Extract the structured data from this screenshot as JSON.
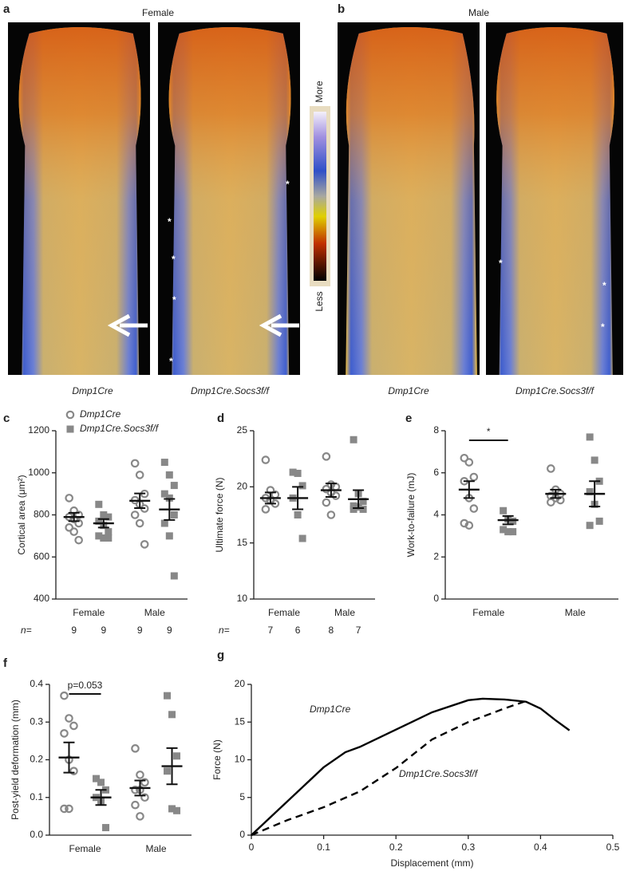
{
  "figure": {
    "panel_a": {
      "letter": "a",
      "title": "Female",
      "captions": [
        "Dmp1Cre",
        "Dmp1Cre.Socs3f/f"
      ],
      "asterisks": [
        "*",
        "*",
        "*",
        "*",
        "*"
      ]
    },
    "colorbar": {
      "top": "More",
      "bottom": "Less"
    },
    "panel_b": {
      "letter": "b",
      "title": "Male",
      "captions": [
        "Dmp1Cre",
        "Dmp1Cre.Socs3f/f"
      ],
      "asterisks": [
        "*",
        "*",
        "*"
      ]
    }
  },
  "chart_data": [
    {
      "type": "dot",
      "letter": "c",
      "ylabel": "Cortical area (μm²)",
      "categories": [
        "Female",
        "Male"
      ],
      "legend": true,
      "series": [
        {
          "name": "Dmp1Cre",
          "color": "#888888",
          "marker": "circle",
          "values": [
            [
              880,
              820,
              800,
              790,
              780,
              760,
              740,
              720,
              680
            ],
            [
              1045,
              990,
              900,
              870,
              850,
              830,
              800,
              760,
              660
            ]
          ],
          "mean": [
            790,
            867
          ],
          "sem": [
            20,
            35
          ]
        },
        {
          "name": "Dmp1Cre.Socs3f/f",
          "color": "#888888",
          "marker": "square",
          "values": [
            [
              850,
              800,
              790,
              770,
              750,
              720,
              700,
              690,
              690
            ],
            [
              1050,
              990,
              940,
              900,
              880,
              800,
              760,
              700,
              510
            ]
          ],
          "mean": [
            760,
            826
          ],
          "sem": [
            20,
            50
          ]
        }
      ],
      "ylim": [
        400,
        1200
      ],
      "yticks": [
        400,
        600,
        800,
        1000,
        1200
      ],
      "n_label": "n=",
      "n": [
        [
          9,
          9
        ],
        [
          9,
          9
        ]
      ]
    },
    {
      "type": "dot",
      "letter": "d",
      "ylabel": "Ultimate force (N)",
      "categories": [
        "Female",
        "Male"
      ],
      "series": [
        {
          "color": "#888888",
          "marker": "circle",
          "values": [
            [
              22.4,
              19.7,
              19.3,
              19.0,
              18.8,
              18.5,
              18.0
            ],
            [
              22.7,
              20.2,
              20.0,
              19.8,
              19.5,
              19.2,
              18.6,
              17.5
            ]
          ],
          "mean": [
            19.0,
            19.7
          ],
          "sem": [
            0.5,
            0.6
          ]
        },
        {
          "color": "#888888",
          "marker": "square",
          "values": [
            [
              21.3,
              21.2,
              20.1,
              19.0,
              17.5,
              15.4
            ],
            [
              24.2,
              19.4,
              18.7,
              18.3,
              18.2,
              18.0,
              18.0
            ]
          ],
          "mean": [
            19.0,
            18.9
          ],
          "sem": [
            1.0,
            0.8
          ]
        }
      ],
      "ylim": [
        10,
        25
      ],
      "yticks": [
        10,
        15,
        20,
        25
      ],
      "n_label": "n=",
      "n": [
        [
          7,
          6
        ],
        [
          8,
          7
        ]
      ]
    },
    {
      "type": "dot",
      "letter": "e",
      "ylabel": "Work-to-failure (mJ)",
      "categories": [
        "Female",
        "Male"
      ],
      "series": [
        {
          "color": "#888888",
          "marker": "circle",
          "values": [
            [
              6.7,
              6.5,
              5.8,
              5.6,
              4.8,
              4.3,
              3.6,
              3.5
            ],
            [
              6.2,
              5.2,
              5.0,
              4.9,
              4.8,
              4.7,
              4.6
            ]
          ],
          "mean": [
            5.2,
            5.0
          ],
          "sem": [
            0.4,
            0.2
          ]
        },
        {
          "color": "#888888",
          "marker": "square",
          "values": [
            [
              4.2,
              3.8,
              3.7,
              3.3,
              3.2,
              3.2
            ],
            [
              7.7,
              6.6,
              5.6,
              5.1,
              4.5,
              3.7,
              3.5
            ]
          ],
          "mean": [
            3.75,
            5.0
          ],
          "sem": [
            0.2,
            0.6
          ]
        }
      ],
      "ylim": [
        0,
        8
      ],
      "yticks": [
        0,
        2,
        4,
        6,
        8
      ],
      "significance": {
        "label": "*",
        "category": 0
      }
    },
    {
      "type": "dot",
      "letter": "f",
      "ylabel": "Post-yield deformation (mm)",
      "categories": [
        "Female",
        "Male"
      ],
      "series": [
        {
          "color": "#888888",
          "marker": "circle",
          "values": [
            [
              0.37,
              0.31,
              0.29,
              0.27,
              0.2,
              0.17,
              0.07,
              0.07
            ],
            [
              0.23,
              0.16,
              0.14,
              0.12,
              0.12,
              0.1,
              0.08,
              0.05
            ]
          ],
          "mean": [
            0.206,
            0.125
          ],
          "sem": [
            0.04,
            0.02
          ]
        },
        {
          "color": "#888888",
          "marker": "square",
          "values": [
            [
              0.15,
              0.14,
              0.12,
              0.1,
              0.09,
              0.02
            ],
            [
              0.37,
              0.32,
              0.21,
              0.17,
              0.07,
              0.065
            ]
          ],
          "mean": [
            0.1,
            0.183
          ],
          "sem": [
            0.02,
            0.048
          ]
        }
      ],
      "ylim": [
        0,
        0.4
      ],
      "yticks": [
        {
          "value": 0,
          "label": "0.0"
        },
        0.1,
        0.2,
        0.3,
        0.4
      ],
      "significance": {
        "label": "p=0.053",
        "category": 0
      }
    },
    {
      "type": "line",
      "letter": "g",
      "xlabel": "Displacement (mm)",
      "ylabel": "Force (N)",
      "series": [
        {
          "name": "Dmp1Cre",
          "color": "#000000",
          "dash": false,
          "x": [
            0,
            0.05,
            0.1,
            0.13,
            0.15,
            0.2,
            0.25,
            0.3,
            0.32,
            0.35,
            0.38,
            0.4,
            0.42,
            0.44
          ],
          "values": [
            0,
            4.5,
            9,
            11,
            11.7,
            14,
            16.3,
            17.9,
            18.1,
            18,
            17.7,
            16.8,
            15.3,
            13.9
          ]
        },
        {
          "name": "Dmp1Cre.Socs3f/f",
          "color": "#000000",
          "dash": true,
          "x": [
            0,
            0.05,
            0.1,
            0.15,
            0.2,
            0.25,
            0.3,
            0.35,
            0.38
          ],
          "values": [
            0,
            2,
            3.7,
            5.8,
            8.9,
            12.7,
            15,
            16.8,
            17.8
          ]
        }
      ],
      "xlim": [
        0,
        0.5
      ],
      "xticks": [
        0,
        0.1,
        0.2,
        0.3,
        0.4,
        0.5
      ],
      "ylim": [
        0,
        20
      ],
      "yticks": [
        0,
        5,
        10,
        15,
        20
      ]
    }
  ]
}
